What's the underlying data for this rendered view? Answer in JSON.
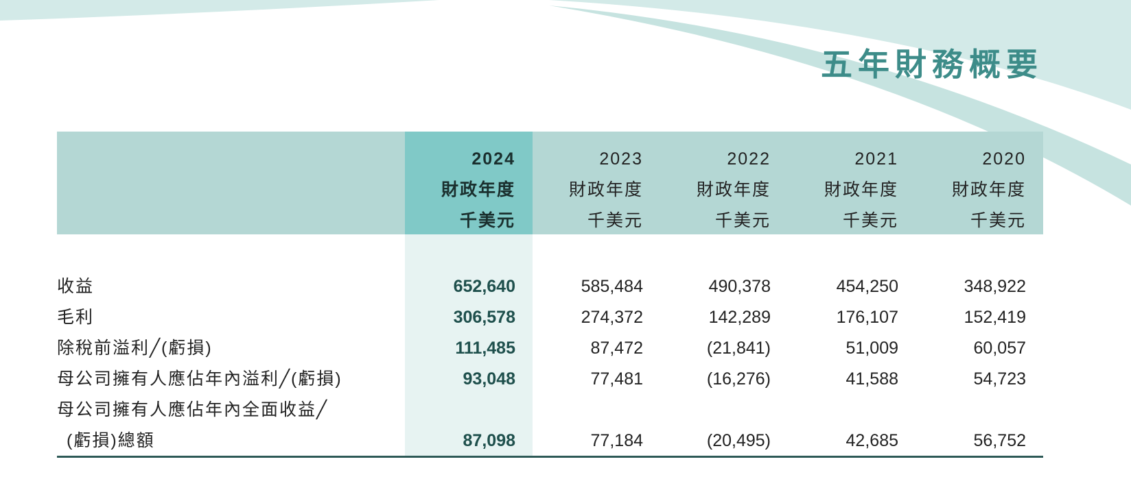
{
  "title": "五年財務概要",
  "colors": {
    "header_bg": "#b4d7d4",
    "highlight_col": "#80c9c7",
    "highlight_light": "#e7f3f2",
    "accent_text": "#1e4f4c",
    "title": "#3d8c89"
  },
  "columns": [
    {
      "year": "2024",
      "period": "財政年度",
      "unit": "千美元"
    },
    {
      "year": "2023",
      "period": "財政年度",
      "unit": "千美元"
    },
    {
      "year": "2022",
      "period": "財政年度",
      "unit": "千美元"
    },
    {
      "year": "2021",
      "period": "財政年度",
      "unit": "千美元"
    },
    {
      "year": "2020",
      "period": "財政年度",
      "unit": "千美元"
    }
  ],
  "rows": [
    {
      "label": "收益",
      "values": [
        "652,640",
        "585,484",
        "490,378",
        "454,250",
        "348,922"
      ]
    },
    {
      "label": "毛利",
      "values": [
        "306,578",
        "274,372",
        "142,289",
        "176,107",
        "152,419"
      ]
    },
    {
      "label": "除稅前溢利╱(虧損)",
      "values": [
        "111,485",
        "87,472",
        "(21,841)",
        "51,009",
        "60,057"
      ]
    },
    {
      "label": "母公司擁有人應佔年內溢利╱(虧損)",
      "values": [
        "93,048",
        "77,481",
        "(16,276)",
        "41,588",
        "54,723"
      ]
    },
    {
      "label": "母公司擁有人應佔年內全面收益╱",
      "label2": "(虧損)總額",
      "values": [
        "87,098",
        "77,184",
        "(20,495)",
        "42,685",
        "56,752"
      ]
    }
  ]
}
